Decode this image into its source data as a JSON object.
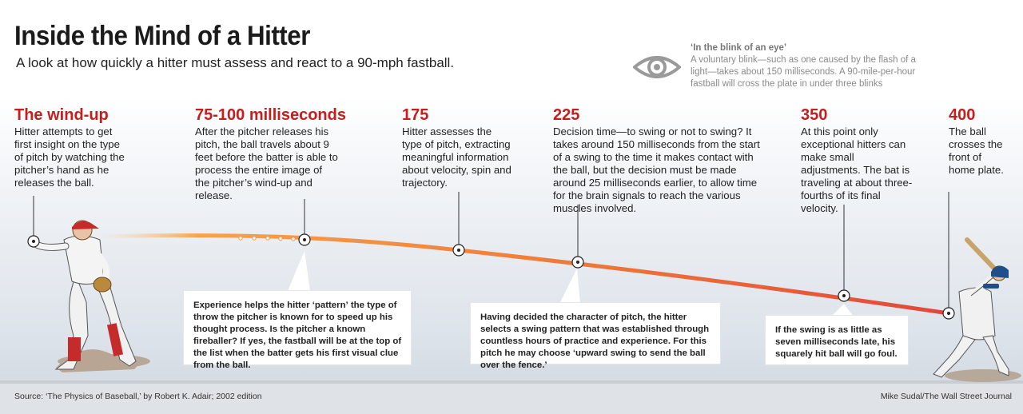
{
  "title": "Inside the Mind of a Hitter",
  "subtitle": "A look at how quickly a hitter must assess and react to a 90-mph fastball.",
  "blink_note": {
    "heading": "‘In the blink of an eye’",
    "text": "A voluntary blink—such as one caused by the flash of a light—takes about 150 milliseconds. A 90-mile-per-hour fastball will cross the plate in under three blinks",
    "icon": "eye-icon"
  },
  "stages": [
    {
      "heading": "The wind-up",
      "text": "Hitter attempts to get first insight on the type of pitch by watching the pitcher’s hand as he releases the ball."
    },
    {
      "heading": "75-100 milliseconds",
      "text": "After the pitcher releases his pitch, the ball travels about 9 feet before the batter is able to process the entire image of the pitcher’s wind-up and release."
    },
    {
      "heading": "175",
      "text": "Hitter assesses the type of pitch, extracting meaningful information about velocity, spin and trajectory."
    },
    {
      "heading": "225",
      "text": "Decision time—to swing or not to swing? It takes around 150 milliseconds from the start of a swing to the time it makes contact with the ball, but the decision must be made around 25 milliseconds earlier, to allow time for the brain signals to reach the various muscles involved."
    },
    {
      "heading": "350",
      "text": "At this point only exceptional hitters can make small adjustments. The bat is traveling at about three-fourths of its final velocity."
    },
    {
      "heading": "400",
      "text": "The ball crosses the front of home plate."
    }
  ],
  "callouts": [
    {
      "pre": "Experience helps the hitter ",
      "bold": "‘pattern’",
      "post": " the type of throw the pitcher is known for to speed up his thought process. Is the pitcher a known fireballer? If yes, the fastball will be at the top of the list when the batter gets his first visual clue from the ball."
    },
    {
      "pre": "Having decided the character of pitch, the hitter selects a ",
      "bold": "swing pattern",
      "post": " that was established through countless hours of practice and experience. For this pitch he may choose ‘upward swing to send the ball over the fence.’"
    },
    {
      "pre": "If ",
      "bold": "the swing",
      "post": " is as little as seven milliseconds late, his squarely hit ball will go foul."
    }
  ],
  "source": "Source: ‘The Physics of Baseball,’ by Robert K. Adair; 2002 edition",
  "credit": "Mike Sudal/The Wall Street Journal",
  "colors": {
    "accent": "#c41e1e",
    "trajectory_start": "#f79a3a",
    "trajectory_end": "#e2463a",
    "uniform_trim": "#c62b2b",
    "batter_helmet": "#1f4f8a"
  }
}
